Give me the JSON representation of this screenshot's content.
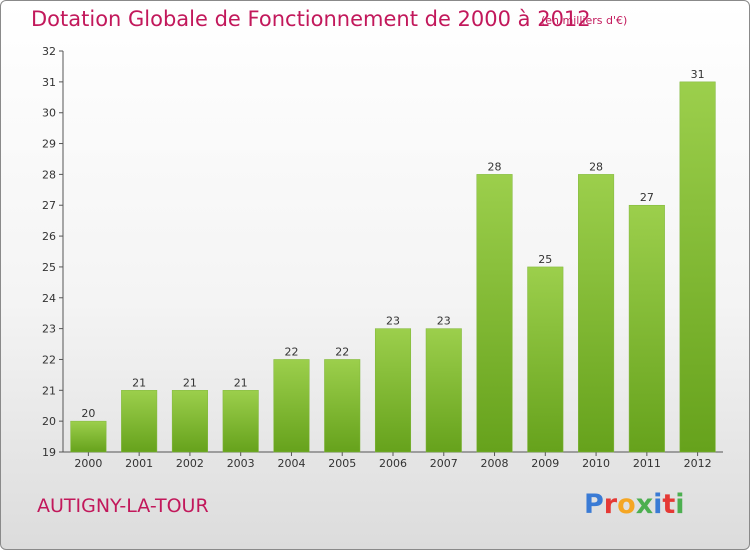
{
  "title": "Dotation Globale de Fonctionnement de 2000 à 2012",
  "subtitle": "(en milliers d'€)",
  "commune": "AUTIGNY-LA-TOUR",
  "logo": {
    "text": "Proxiti"
  },
  "colors": {
    "title": "#c2185b",
    "bar_top": "#9ccf4c",
    "bar_bottom": "#66a21c",
    "axis": "#555555"
  },
  "chart_data": {
    "type": "bar",
    "title": "Dotation Globale de Fonctionnement de 2000 à 2012",
    "subtitle": "(en milliers d'€)",
    "xlabel": "",
    "ylabel": "",
    "categories": [
      "2000",
      "2001",
      "2002",
      "2003",
      "2004",
      "2005",
      "2006",
      "2007",
      "2008",
      "2009",
      "2010",
      "2011",
      "2012"
    ],
    "values": [
      20,
      21,
      21,
      21,
      22,
      22,
      23,
      23,
      28,
      25,
      28,
      27,
      31
    ],
    "ylim": [
      19,
      32
    ],
    "yticks": [
      19,
      20,
      21,
      22,
      23,
      24,
      25,
      26,
      27,
      28,
      29,
      30,
      31,
      32
    ],
    "grid": false,
    "legend": "none"
  }
}
